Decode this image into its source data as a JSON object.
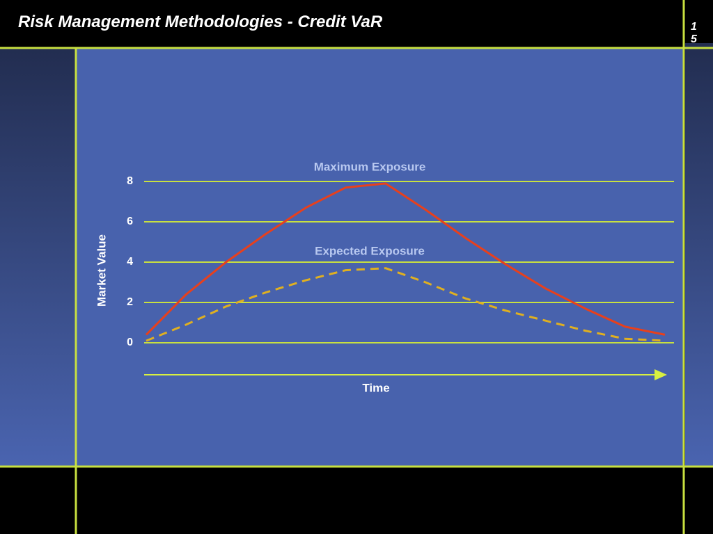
{
  "slide": {
    "title": "Risk Management Methodologies - Credit VaR",
    "page_number": "15"
  },
  "chart_data": {
    "type": "line",
    "categories": [
      null,
      null,
      null,
      null,
      null,
      null,
      null,
      null,
      null,
      null,
      null,
      null,
      null,
      null
    ],
    "series": [
      {
        "name": "Maximum Exposure",
        "color": "#e8401c",
        "line_style": "solid",
        "values": [
          0.4,
          2.4,
          4.0,
          5.4,
          6.7,
          7.7,
          7.9,
          6.6,
          5.2,
          3.9,
          2.7,
          1.7,
          0.8,
          0.4
        ]
      },
      {
        "name": "Expected Exposure",
        "color": "#e0b020",
        "line_style": "dashed",
        "values": [
          0.1,
          0.9,
          1.8,
          2.5,
          3.1,
          3.6,
          3.7,
          3.0,
          2.2,
          1.6,
          1.1,
          0.6,
          0.2,
          0.1
        ]
      }
    ],
    "y_label": "Market Value",
    "x_label": "Time",
    "ylim": [
      0,
      8
    ],
    "yticks": [
      0,
      2,
      4,
      6,
      8
    ],
    "grid": true
  }
}
